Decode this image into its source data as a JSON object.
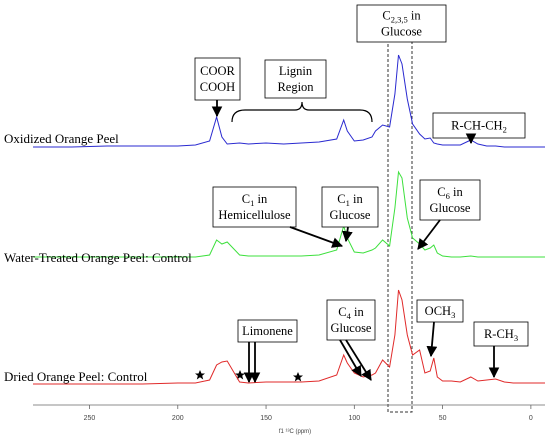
{
  "chart_data": {
    "type": "line",
    "x": [
      282,
      260,
      240,
      220,
      200,
      190,
      182,
      178,
      175,
      172,
      165,
      160,
      150,
      140,
      130,
      120,
      110,
      106,
      104,
      100,
      95,
      90,
      88,
      84,
      80,
      77,
      75,
      73,
      70,
      67,
      63,
      60,
      57,
      55,
      53,
      50,
      45,
      40,
      34,
      30,
      25,
      20,
      15,
      10,
      0,
      -8
    ],
    "xlim": [
      282,
      -8
    ],
    "xticks": [
      250,
      200,
      150,
      100,
      50,
      0
    ],
    "xlabel": "f1 ¹³C (ppm)",
    "series": [
      {
        "name": "Oxidized Orange Peel",
        "color": "#2a2ad0",
        "values": [
          2,
          2,
          3,
          3,
          3,
          4,
          8,
          32,
          12,
          5,
          6,
          5,
          6,
          5,
          6,
          7,
          10,
          29,
          18,
          8,
          9,
          12,
          18,
          24,
          22,
          55,
          94,
          85,
          50,
          25,
          15,
          10,
          11,
          6,
          5,
          4,
          4,
          4,
          9,
          5,
          3,
          3,
          2,
          2,
          2,
          2
        ]
      },
      {
        "name": "Water-Treated Orange Peel: Control",
        "color": "#3de03d",
        "values": [
          1,
          1,
          1,
          1,
          1,
          1,
          3,
          18,
          14,
          16,
          3,
          2,
          2,
          2,
          2,
          3,
          8,
          32,
          20,
          6,
          5,
          8,
          10,
          18,
          12,
          50,
          86,
          80,
          40,
          20,
          14,
          8,
          10,
          13,
          5,
          2,
          1,
          1,
          2,
          1,
          1,
          1,
          1,
          1,
          1,
          1
        ]
      },
      {
        "name": "Dried Orange Peel: Control",
        "color": "#e02a2a",
        "values": [
          1,
          1,
          1,
          1,
          2,
          2,
          5,
          20,
          23,
          24,
          3,
          2,
          3,
          3,
          3,
          4,
          10,
          30,
          22,
          12,
          8,
          10,
          12,
          25,
          18,
          50,
          95,
          85,
          50,
          30,
          35,
          12,
          14,
          27,
          8,
          4,
          4,
          3,
          8,
          4,
          5,
          6,
          3,
          2,
          2,
          2
        ]
      }
    ],
    "annotations": [
      {
        "lines": [
          "COOR",
          "COOH"
        ]
      },
      {
        "lines": [
          "Lignin",
          "Region"
        ]
      },
      {
        "lines": [
          {
            "text": "C",
            "sub": "2,3,5",
            "tail": " in"
          },
          "Glucose"
        ]
      },
      {
        "lines": [
          {
            "text": "R-CH-CH",
            "sub": "2"
          }
        ]
      },
      {
        "lines": [
          {
            "text": "C",
            "sub": "1",
            "tail": " in"
          },
          "Hemicellulose"
        ]
      },
      {
        "lines": [
          {
            "text": "C",
            "sub": "1",
            "tail": " in"
          },
          "Glucose"
        ]
      },
      {
        "lines": [
          {
            "text": "C",
            "sub": "6",
            "tail": " in"
          },
          "Glucose"
        ]
      },
      {
        "lines": [
          {
            "text": "C",
            "sub": "4",
            "tail": " in"
          },
          "Glucose"
        ]
      },
      {
        "lines": [
          "Limonene"
        ]
      },
      {
        "lines": [
          {
            "text": "OCH",
            "sub": "3"
          }
        ]
      },
      {
        "lines": [
          {
            "text": "R-CH",
            "sub": "3"
          }
        ]
      }
    ]
  }
}
